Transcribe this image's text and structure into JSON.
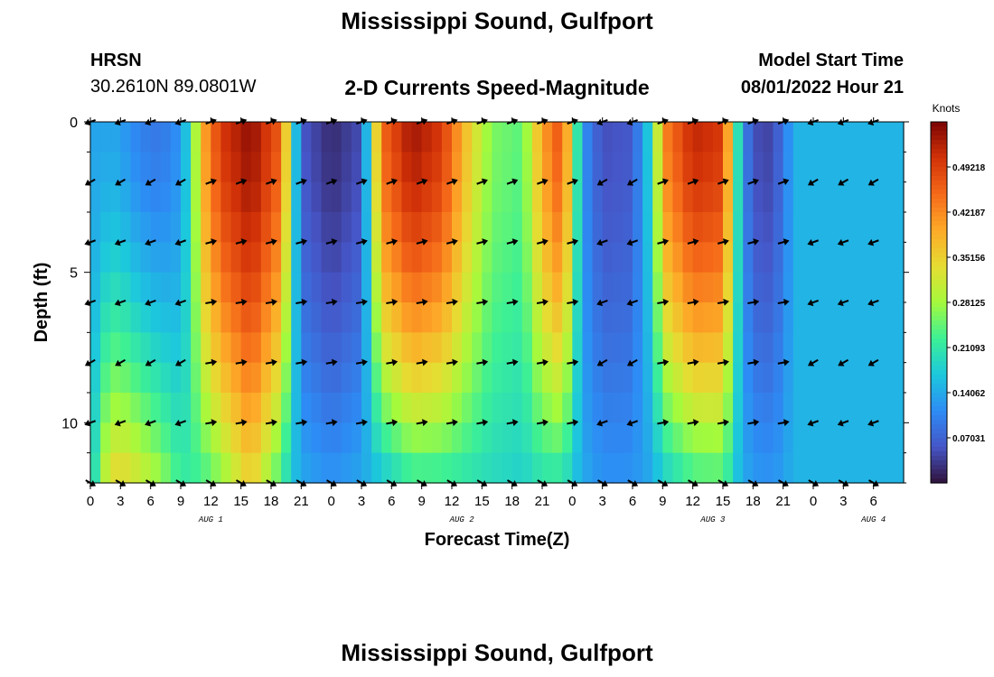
{
  "header": {
    "title": "Mississippi Sound, Gulfport",
    "station_id": "HRSN",
    "coords": "30.2610N  89.0801W",
    "subtitle": "2-D Currents Speed-Magnitude",
    "model_start_label": "Model Start Time",
    "model_start_value": "08/01/2022 Hour 21"
  },
  "footer": {
    "title": "Mississippi Sound, Gulfport"
  },
  "chart_data": {
    "type": "heatmap",
    "title": "2-D Currents Speed-Magnitude",
    "xlabel": "Forecast Time(Z)",
    "ylabel": "Depth (ft)",
    "x_range_hours": [
      0,
      81
    ],
    "y_range_ft": [
      0,
      12
    ],
    "x_ticks": [
      "0",
      "3",
      "6",
      "9",
      "12",
      "15",
      "18",
      "21",
      "0",
      "3",
      "6",
      "9",
      "12",
      "15",
      "18",
      "21",
      "0",
      "3",
      "6",
      "9",
      "12",
      "15",
      "18",
      "21",
      "0",
      "3",
      "6"
    ],
    "y_ticks": [
      {
        "depth": 0,
        "label": "0"
      },
      {
        "depth": 5,
        "label": "5"
      },
      {
        "depth": 10,
        "label": "10"
      }
    ],
    "date_labels": [
      {
        "hour": 12,
        "label": "AUG 1"
      },
      {
        "hour": 37,
        "label": "AUG 2"
      },
      {
        "hour": 62,
        "label": "AUG 3"
      },
      {
        "hour": 78,
        "label": "AUG 4"
      }
    ],
    "colorbar": {
      "title": "Knots",
      "min": 0.0,
      "max": 0.5625,
      "ticks": [
        "0.07031",
        "0.14062",
        "0.21093",
        "0.28125",
        "0.35156",
        "0.42187",
        "0.49218"
      ]
    },
    "speed_profile_by_hour": [
      {
        "hour": 0,
        "surface": 0.14,
        "bottom": 0.14
      },
      {
        "hour": 1,
        "surface": 0.13,
        "bottom": 0.28
      },
      {
        "hour": 2,
        "surface": 0.14,
        "bottom": 0.34
      },
      {
        "hour": 3,
        "surface": 0.13,
        "bottom": 0.35
      },
      {
        "hour": 5,
        "surface": 0.1,
        "bottom": 0.32
      },
      {
        "hour": 7,
        "surface": 0.09,
        "bottom": 0.28
      },
      {
        "hour": 9,
        "surface": 0.12,
        "bottom": 0.22
      },
      {
        "hour": 10,
        "surface": 0.2,
        "bottom": 0.22
      },
      {
        "hour": 11,
        "surface": 0.38,
        "bottom": 0.22
      },
      {
        "hour": 13,
        "surface": 0.5,
        "bottom": 0.26
      },
      {
        "hour": 16,
        "surface": 0.55,
        "bottom": 0.35
      },
      {
        "hour": 19,
        "surface": 0.46,
        "bottom": 0.22
      },
      {
        "hour": 20,
        "surface": 0.25,
        "bottom": 0.17
      },
      {
        "hour": 21,
        "surface": 0.06,
        "bottom": 0.14
      },
      {
        "hour": 24,
        "surface": 0.02,
        "bottom": 0.12
      },
      {
        "hour": 27,
        "surface": 0.05,
        "bottom": 0.14
      },
      {
        "hour": 28,
        "surface": 0.25,
        "bottom": 0.15
      },
      {
        "hour": 29,
        "surface": 0.45,
        "bottom": 0.16
      },
      {
        "hour": 32,
        "surface": 0.54,
        "bottom": 0.21
      },
      {
        "hour": 35,
        "surface": 0.5,
        "bottom": 0.21
      },
      {
        "hour": 38,
        "surface": 0.34,
        "bottom": 0.2
      },
      {
        "hour": 40,
        "surface": 0.26,
        "bottom": 0.19
      },
      {
        "hour": 43,
        "surface": 0.24,
        "bottom": 0.18
      },
      {
        "hour": 45,
        "surface": 0.4,
        "bottom": 0.2
      },
      {
        "hour": 47,
        "surface": 0.48,
        "bottom": 0.2
      },
      {
        "hour": 48,
        "surface": 0.3,
        "bottom": 0.17
      },
      {
        "hour": 49,
        "surface": 0.12,
        "bottom": 0.14
      },
      {
        "hour": 51,
        "surface": 0.05,
        "bottom": 0.12
      },
      {
        "hour": 54,
        "surface": 0.06,
        "bottom": 0.12
      },
      {
        "hour": 56,
        "surface": 0.2,
        "bottom": 0.14
      },
      {
        "hour": 57,
        "surface": 0.42,
        "bottom": 0.17
      },
      {
        "hour": 60,
        "surface": 0.52,
        "bottom": 0.22
      },
      {
        "hour": 63,
        "surface": 0.5,
        "bottom": 0.23
      },
      {
        "hour": 64,
        "surface": 0.3,
        "bottom": 0.18
      },
      {
        "hour": 65,
        "surface": 0.1,
        "bottom": 0.14
      },
      {
        "hour": 67,
        "surface": 0.03,
        "bottom": 0.12
      },
      {
        "hour": 69,
        "surface": 0.08,
        "bottom": 0.13
      },
      {
        "hour": 70,
        "surface": 0.15,
        "bottom": 0.15
      }
    ],
    "vector_rows_ft": [
      0,
      2,
      4,
      6,
      8,
      10,
      12
    ],
    "vector_hours": [
      0,
      3,
      6,
      9,
      12,
      15,
      18,
      21,
      24,
      27,
      30,
      33,
      36,
      39,
      42,
      45,
      48,
      51,
      54,
      57,
      60,
      63,
      66,
      69,
      72,
      75,
      78
    ],
    "vector_angles_deg_by_hour": [
      [
        200,
        210,
        200,
        200,
        210,
        200,
        330
      ],
      [
        200,
        210,
        200,
        200,
        210,
        200,
        330
      ],
      [
        200,
        210,
        200,
        200,
        210,
        200,
        330
      ],
      [
        200,
        210,
        200,
        200,
        210,
        200,
        330
      ],
      [
        20,
        20,
        15,
        10,
        10,
        10,
        330
      ],
      [
        20,
        20,
        15,
        10,
        10,
        10,
        330
      ],
      [
        20,
        20,
        15,
        10,
        10,
        10,
        330
      ],
      [
        20,
        20,
        15,
        10,
        10,
        10,
        330
      ],
      [
        20,
        20,
        15,
        10,
        10,
        10,
        330
      ],
      [
        20,
        20,
        15,
        10,
        10,
        10,
        330
      ],
      [
        20,
        20,
        15,
        10,
        10,
        10,
        330
      ],
      [
        20,
        20,
        15,
        10,
        10,
        10,
        330
      ],
      [
        20,
        20,
        15,
        10,
        10,
        10,
        330
      ],
      [
        20,
        20,
        15,
        10,
        10,
        10,
        330
      ],
      [
        20,
        20,
        15,
        10,
        10,
        10,
        330
      ],
      [
        20,
        20,
        15,
        10,
        10,
        10,
        330
      ],
      [
        20,
        20,
        15,
        10,
        10,
        10,
        330
      ],
      [
        200,
        210,
        200,
        200,
        210,
        200,
        330
      ],
      [
        200,
        210,
        200,
        200,
        210,
        200,
        330
      ],
      [
        20,
        20,
        15,
        10,
        10,
        10,
        330
      ],
      [
        20,
        20,
        15,
        10,
        10,
        10,
        330
      ],
      [
        20,
        20,
        15,
        10,
        10,
        10,
        330
      ],
      [
        20,
        20,
        15,
        10,
        10,
        10,
        330
      ],
      [
        20,
        20,
        15,
        10,
        10,
        10,
        330
      ],
      [
        200,
        210,
        200,
        200,
        210,
        200,
        330
      ],
      [
        200,
        210,
        200,
        200,
        210,
        200,
        330
      ],
      [
        200,
        210,
        200,
        200,
        210,
        200,
        330
      ]
    ]
  }
}
